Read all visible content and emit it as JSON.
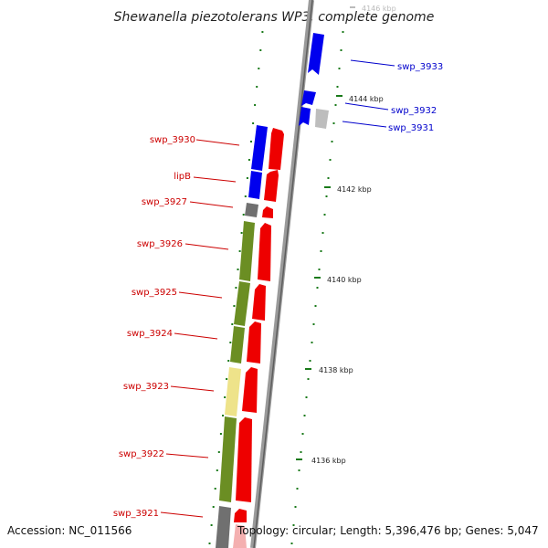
{
  "title": "Shewanella piezotolerans WP3, complete genome",
  "footer": {
    "accession": "Accession: NC_011566",
    "topology": "Topology: circular; Length: 5,396,476 bp; Genes: 5,047"
  },
  "colors": {
    "forward_gene": "#0000ee",
    "reverse_gene": "#ee0000",
    "olive_block": "#6b8e23",
    "pale_block": "#eee38a",
    "gray_block": "#808080",
    "backbone": "#888888",
    "tick": "#1a7a1a"
  },
  "labels_right": [
    {
      "id": "swp_3933",
      "text": "swp_3933"
    },
    {
      "id": "swp_3932",
      "text": "swp_3932"
    },
    {
      "id": "swp_3931",
      "text": "swp_3931"
    }
  ],
  "labels_left": [
    {
      "id": "swp_3930",
      "text": "swp_3930"
    },
    {
      "id": "lipB",
      "text": "lipB"
    },
    {
      "id": "swp_3927",
      "text": "swp_3927"
    },
    {
      "id": "swp_3926",
      "text": "swp_3926"
    },
    {
      "id": "swp_3925",
      "text": "swp_3925"
    },
    {
      "id": "swp_3924",
      "text": "swp_3924"
    },
    {
      "id": "swp_3923",
      "text": "swp_3923"
    },
    {
      "id": "swp_3922",
      "text": "swp_3922"
    },
    {
      "id": "swp_3921",
      "text": "swp_3921"
    }
  ],
  "kbp_labels": [
    {
      "text": "4146 kbp",
      "faded": true
    },
    {
      "text": "4144 kbp",
      "faded": false
    },
    {
      "text": "4142 kbp",
      "faded": false
    },
    {
      "text": "4140 kbp",
      "faded": false
    },
    {
      "text": "4138 kbp",
      "faded": false
    },
    {
      "text": "4136 kbp",
      "faded": false
    }
  ]
}
